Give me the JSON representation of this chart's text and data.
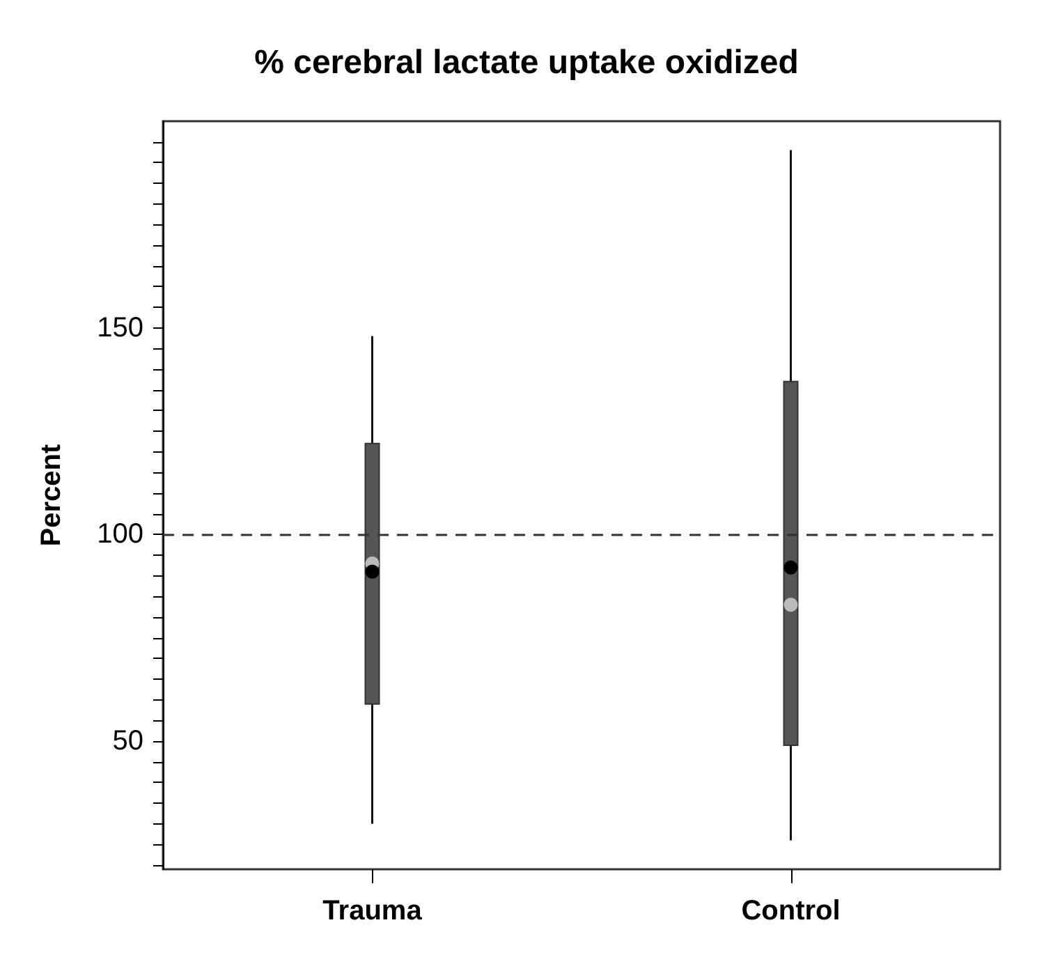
{
  "chart_data": {
    "type": "box",
    "title": "% cerebral lactate uptake oxidized",
    "ylabel": "Percent",
    "categories": [
      "Trauma",
      "Control"
    ],
    "boxes": [
      {
        "low": 30,
        "q1": 59,
        "median": 93,
        "q3": 122,
        "high": 148,
        "mean": 91
      },
      {
        "low": 26,
        "q1": 49,
        "median": 83,
        "q3": 137,
        "high": 193,
        "mean": 92
      }
    ],
    "ylim": [
      19,
      200
    ],
    "yticks": [
      {
        "value": 20,
        "label": null
      },
      {
        "value": 25,
        "label": null
      },
      {
        "value": 30,
        "label": null
      },
      {
        "value": 35,
        "label": null
      },
      {
        "value": 40,
        "label": null
      },
      {
        "value": 45,
        "label": null
      },
      50,
      {
        "value": 55,
        "label": null
      },
      {
        "value": 60,
        "label": null
      },
      {
        "value": 65,
        "label": null
      },
      {
        "value": 70,
        "label": null
      },
      {
        "value": 75,
        "label": null
      },
      {
        "value": 80,
        "label": null
      },
      {
        "value": 85,
        "label": null
      },
      {
        "value": 90,
        "label": null
      },
      {
        "value": 95,
        "label": null
      },
      100,
      {
        "value": 105,
        "label": null
      },
      {
        "value": 110,
        "label": null
      },
      {
        "value": 115,
        "label": null
      },
      {
        "value": 120,
        "label": null
      },
      {
        "value": 125,
        "label": null
      },
      {
        "value": 130,
        "label": null
      },
      {
        "value": 135,
        "label": null
      },
      {
        "value": 140,
        "label": null
      },
      {
        "value": 145,
        "label": null
      },
      150,
      {
        "value": 155,
        "label": null
      },
      {
        "value": 160,
        "label": null
      },
      {
        "value": 165,
        "label": null
      },
      {
        "value": 170,
        "label": null
      },
      {
        "value": 175,
        "label": null
      },
      {
        "value": 180,
        "label": null
      },
      {
        "value": 185,
        "label": null
      },
      {
        "value": 190,
        "label": null
      },
      {
        "value": 195,
        "label": null
      }
    ],
    "ref_lines": [
      {
        "axis": "y",
        "value": 100,
        "line_style": "dashed",
        "color": "#333333"
      }
    ],
    "grid": false
  }
}
